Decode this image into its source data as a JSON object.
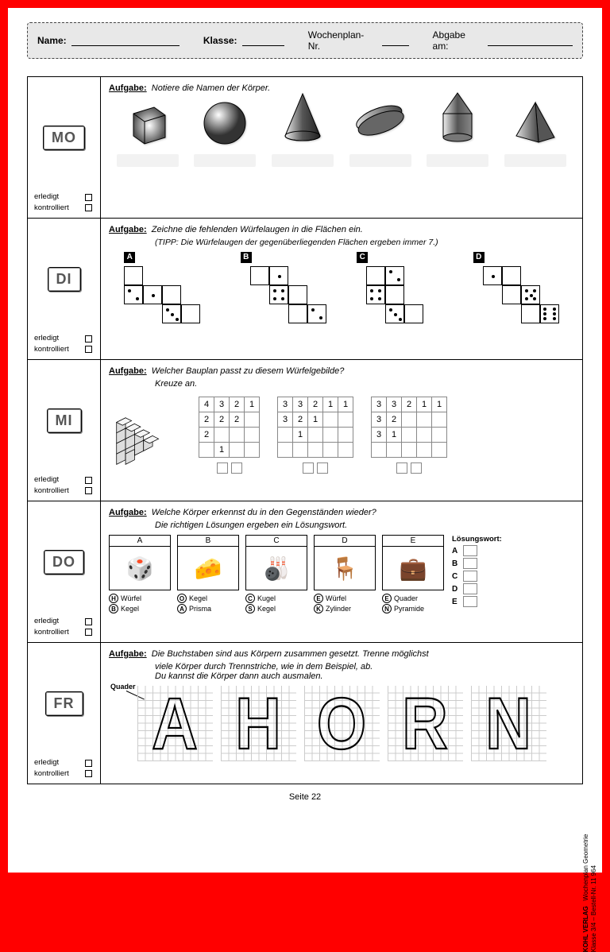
{
  "header": {
    "name_label": "Name:",
    "klasse_label": "Klasse:",
    "wochenplan_label": "Wochenplan- Nr.",
    "abgabe_label": "Abgabe am:"
  },
  "aufgabe_label": "Aufgabe:",
  "checks": {
    "erledigt": "erledigt",
    "kontrolliert": "kontrolliert"
  },
  "days": {
    "mo": {
      "label": "MO",
      "task": "Notiere die Namen der Körper."
    },
    "di": {
      "label": "DI",
      "task": "Zeichne die fehlenden Würfelaugen in die Flächen ein.",
      "tipp": "(TIPP: Die Würfelaugen der gegenüberliegenden Flächen ergeben immer 7.)",
      "nets": [
        "A",
        "B",
        "C",
        "D"
      ]
    },
    "mi": {
      "label": "MI",
      "task": "Welcher Bauplan passt zu diesem Würfelgebilde?",
      "task2": "Kreuze an.",
      "plans": [
        [
          [
            "4",
            "3",
            "2",
            "1"
          ],
          [
            "2",
            "2",
            "2",
            ""
          ],
          [
            "2",
            "",
            "",
            ""
          ],
          [
            "",
            "1",
            "",
            ""
          ]
        ],
        [
          [
            "3",
            "3",
            "2",
            "1",
            "1"
          ],
          [
            "3",
            "2",
            "1",
            "",
            ""
          ],
          [
            "",
            "1",
            "",
            "",
            ""
          ],
          [
            "",
            "",
            "",
            "",
            ""
          ]
        ],
        [
          [
            "3",
            "3",
            "2",
            "1",
            "1"
          ],
          [
            "3",
            "2",
            "",
            "",
            ""
          ],
          [
            "3",
            "1",
            "",
            "",
            ""
          ],
          [
            "",
            "",
            "",
            "",
            ""
          ]
        ]
      ]
    },
    "do": {
      "label": "DO",
      "task": "Welche Körper erkennst du in den Gegenständen wieder?",
      "task2": "Die richtigen Lösungen ergeben ein Lösungswort.",
      "losungswort": "Lösungswort:",
      "items": [
        {
          "letter": "A",
          "emoji": "🎲",
          "opts": [
            {
              "c": "H",
              "t": "Würfel"
            },
            {
              "c": "B",
              "t": "Kegel"
            }
          ]
        },
        {
          "letter": "B",
          "emoji": "🧀",
          "opts": [
            {
              "c": "O",
              "t": "Kegel"
            },
            {
              "c": "A",
              "t": "Prisma"
            }
          ]
        },
        {
          "letter": "C",
          "emoji": "🎳",
          "opts": [
            {
              "c": "C",
              "t": "Kugel"
            },
            {
              "c": "S",
              "t": "Kegel"
            }
          ]
        },
        {
          "letter": "D",
          "emoji": "🪑",
          "opts": [
            {
              "c": "E",
              "t": "Würfel"
            },
            {
              "c": "K",
              "t": "Zylinder"
            }
          ]
        },
        {
          "letter": "E",
          "emoji": "💼",
          "opts": [
            {
              "c": "E",
              "t": "Quader"
            },
            {
              "c": "N",
              "t": "Pyramide"
            }
          ]
        }
      ],
      "answer_letters": [
        "A",
        "B",
        "C",
        "D",
        "E"
      ]
    },
    "fr": {
      "label": "FR",
      "task": "Die Buchstaben sind aus Körpern zusammen gesetzt. Trenne möglichst",
      "task2": "viele Körper durch Trennstriche, wie in dem Beispiel, ab.",
      "task3": "Du kannst die Körper dann auch ausmalen.",
      "quader": "Quader",
      "letters": [
        "A",
        "H",
        "O",
        "R",
        "N"
      ]
    }
  },
  "footer": {
    "page": "Seite 22",
    "publisher": "KOHL VERLAG",
    "line1": "Wochenplan Geometrie",
    "line2": "Klasse 3/4  –  Bestell-Nr. 11 964"
  }
}
